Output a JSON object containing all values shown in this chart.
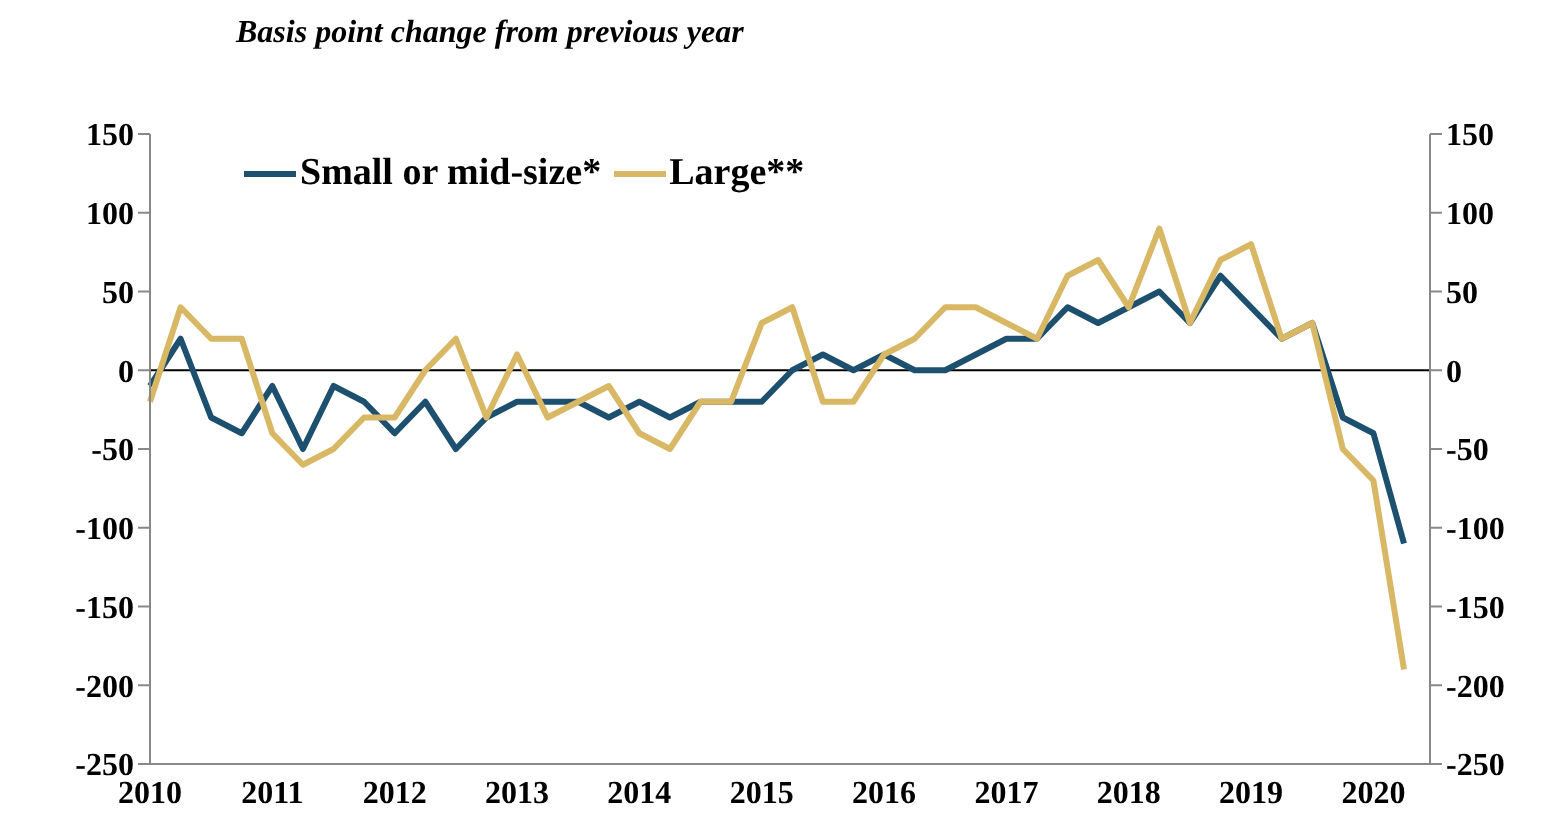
{
  "chart_data": {
    "type": "line",
    "title": "Basis point change from previous year",
    "categories": [
      "2010",
      null,
      null,
      null,
      "2011",
      null,
      null,
      null,
      "2012",
      null,
      null,
      null,
      "2013",
      null,
      null,
      null,
      "2014",
      null,
      null,
      null,
      "2015",
      null,
      null,
      null,
      "2016",
      null,
      null,
      null,
      "2017",
      null,
      null,
      null,
      "2018",
      null,
      null,
      null,
      "2019",
      null,
      null,
      null,
      "2020",
      null
    ],
    "series": [
      {
        "name": "Small or mid-size*",
        "color": "#1d4f6e",
        "values": [
          -10,
          20,
          -30,
          -40,
          -10,
          -50,
          -10,
          -20,
          -40,
          -20,
          -50,
          -30,
          -20,
          -20,
          -20,
          -30,
          -20,
          -30,
          -20,
          -20,
          -20,
          0,
          10,
          0,
          10,
          0,
          0,
          10,
          20,
          20,
          40,
          30,
          40,
          50,
          30,
          60,
          40,
          20,
          30,
          -30,
          -40,
          -110
        ]
      },
      {
        "name": "Large**",
        "color": "#d9b865",
        "values": [
          -20,
          40,
          20,
          20,
          -40,
          -60,
          -50,
          -30,
          -30,
          0,
          20,
          -30,
          10,
          -30,
          -20,
          -10,
          -40,
          -50,
          -20,
          -20,
          30,
          40,
          -20,
          -20,
          10,
          20,
          40,
          40,
          30,
          20,
          60,
          70,
          40,
          90,
          30,
          70,
          80,
          20,
          30,
          -50,
          -70,
          -190
        ]
      }
    ],
    "ylim": [
      -250,
      150
    ],
    "yticks": [
      -250,
      -200,
      -150,
      -100,
      -50,
      0,
      50,
      100,
      150
    ],
    "y2lim": [
      -250,
      150
    ],
    "y2ticks": [
      -250,
      -200,
      -150,
      -100,
      -50,
      0,
      50,
      100,
      150
    ],
    "ref_lines": [
      {
        "axis": "y",
        "value": 0,
        "color": "#000000"
      }
    ],
    "grid": false,
    "legend": "top left",
    "marker": "none",
    "line_style": "solid"
  }
}
